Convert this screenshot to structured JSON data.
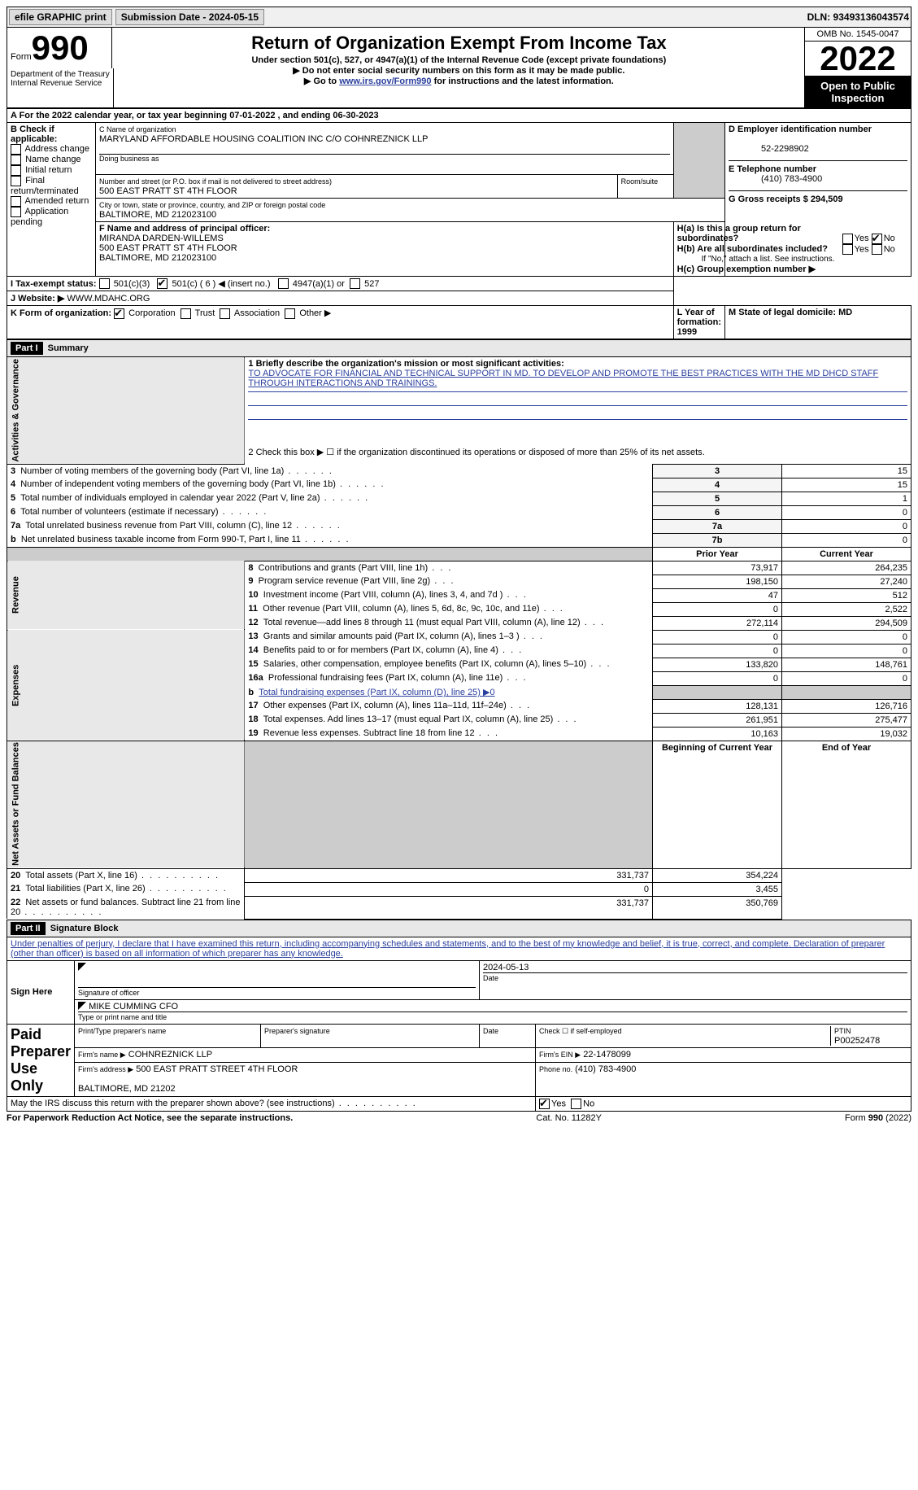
{
  "topbar": {
    "efile": "efile GRAPHIC print",
    "submission": "Submission Date - 2024-05-15",
    "dln": "DLN: 93493136043574"
  },
  "header": {
    "form_word": "Form",
    "form_no": "990",
    "title": "Return of Organization Exempt From Income Tax",
    "sub1": "Under section 501(c), 527, or 4947(a)(1) of the Internal Revenue Code (except private foundations)",
    "sub2": "▶ Do not enter social security numbers on this form as it may be made public.",
    "sub3_pre": "▶ Go to ",
    "sub3_link": "www.irs.gov/Form990",
    "sub3_post": " for instructions and the latest information.",
    "dept": "Department of the Treasury\nInternal Revenue Service",
    "omb": "OMB No. 1545-0047",
    "year": "2022",
    "inspect": "Open to Public Inspection"
  },
  "sectionA": {
    "line": "A For the 2022 calendar year, or tax year beginning 07-01-2022   , and ending 06-30-2023",
    "b_label": "B Check if applicable:",
    "b_opts": [
      "Address change",
      "Name change",
      "Initial return",
      "Final return/terminated",
      "Amended return",
      "Application pending"
    ],
    "c_label": "C Name of organization",
    "c_name": "MARYLAND AFFORDABLE HOUSING COALITION INC C/O COHNREZNICK LLP",
    "dba_label": "Doing business as",
    "addr_label": "Number and street (or P.O. box if mail is not delivered to street address)",
    "addr": "500 EAST PRATT ST 4TH FLOOR",
    "room_label": "Room/suite",
    "city_label": "City or town, state or province, country, and ZIP or foreign postal code",
    "city": "BALTIMORE, MD  212023100",
    "d_label": "D Employer identification number",
    "d_val": "52-2298902",
    "e_label": "E Telephone number",
    "e_val": "(410) 783-4900",
    "g_label": "G Gross receipts $ 294,509",
    "f_label": "F  Name and address of principal officer:",
    "f_val": "MIRANDA DARDEN-WILLEMS\n500 EAST PRATT ST 4TH FLOOR\nBALTIMORE, MD  212023100",
    "ha": "H(a)  Is this a group return for subordinates?",
    "hb": "H(b)  Are all subordinates included?",
    "hb_note": "If \"No,\" attach a list. See instructions.",
    "hc": "H(c)  Group exemption number ▶",
    "yes": "Yes",
    "no": "No",
    "i_label": "I   Tax-exempt status:",
    "i_501c3": "501(c)(3)",
    "i_501c": "501(c) ( 6 ) ◀ (insert no.)",
    "i_4947": "4947(a)(1) or",
    "i_527": "527",
    "j_label": "J   Website: ▶",
    "j_val": "WWW.MDAHC.ORG",
    "k_label": "K Form of organization:",
    "k_corp": "Corporation",
    "k_trust": "Trust",
    "k_assoc": "Association",
    "k_other": "Other ▶",
    "l_label": "L Year of formation: 1999",
    "m_label": "M State of legal domicile: MD"
  },
  "part1": {
    "hdr": "Part I",
    "title": "Summary",
    "q1_label": "1  Briefly describe the organization's mission or most significant activities:",
    "q1_val": "TO ADVOCATE FOR FINANCIAL AND TECHNICAL SUPPORT IN MD. TO DEVELOP AND PROMOTE THE BEST PRACTICES WITH THE MD DHCD STAFF THROUGH INTERACTIONS AND TRAININGS.",
    "q2": "2   Check this box ▶ ☐  if the organization discontinued its operations or disposed of more than 25% of its net assets.",
    "rows_a": [
      {
        "n": "3",
        "label": "Number of voting members of the governing body (Part VI, line 1a)",
        "ref": "3",
        "val": "15"
      },
      {
        "n": "4",
        "label": "Number of independent voting members of the governing body (Part VI, line 1b)",
        "ref": "4",
        "val": "15"
      },
      {
        "n": "5",
        "label": "Total number of individuals employed in calendar year 2022 (Part V, line 2a)",
        "ref": "5",
        "val": "1"
      },
      {
        "n": "6",
        "label": "Total number of volunteers (estimate if necessary)",
        "ref": "6",
        "val": "0"
      },
      {
        "n": "7a",
        "label": "Total unrelated business revenue from Part VIII, column (C), line 12",
        "ref": "7a",
        "val": "0"
      },
      {
        "n": "b",
        "label": "Net unrelated business taxable income from Form 990-T, Part I, line 11",
        "ref": "7b",
        "val": "0"
      }
    ],
    "col_prior": "Prior Year",
    "col_current": "Current Year",
    "revenue": [
      {
        "n": "8",
        "label": "Contributions and grants (Part VIII, line 1h)",
        "p": "73,917",
        "c": "264,235"
      },
      {
        "n": "9",
        "label": "Program service revenue (Part VIII, line 2g)",
        "p": "198,150",
        "c": "27,240"
      },
      {
        "n": "10",
        "label": "Investment income (Part VIII, column (A), lines 3, 4, and 7d )",
        "p": "47",
        "c": "512"
      },
      {
        "n": "11",
        "label": "Other revenue (Part VIII, column (A), lines 5, 6d, 8c, 9c, 10c, and 11e)",
        "p": "0",
        "c": "2,522"
      },
      {
        "n": "12",
        "label": "Total revenue—add lines 8 through 11 (must equal Part VIII, column (A), line 12)",
        "p": "272,114",
        "c": "294,509"
      }
    ],
    "expenses": [
      {
        "n": "13",
        "label": "Grants and similar amounts paid (Part IX, column (A), lines 1–3 )",
        "p": "0",
        "c": "0"
      },
      {
        "n": "14",
        "label": "Benefits paid to or for members (Part IX, column (A), line 4)",
        "p": "0",
        "c": "0"
      },
      {
        "n": "15",
        "label": "Salaries, other compensation, employee benefits (Part IX, column (A), lines 5–10)",
        "p": "133,820",
        "c": "148,761"
      },
      {
        "n": "16a",
        "label": "Professional fundraising fees (Part IX, column (A), line 11e)",
        "p": "0",
        "c": "0"
      },
      {
        "n": "b",
        "label": "Total fundraising expenses (Part IX, column (D), line 25) ▶0",
        "p": "",
        "c": "",
        "shade": true
      },
      {
        "n": "17",
        "label": "Other expenses (Part IX, column (A), lines 11a–11d, 11f–24e)",
        "p": "128,131",
        "c": "126,716"
      },
      {
        "n": "18",
        "label": "Total expenses. Add lines 13–17 (must equal Part IX, column (A), line 25)",
        "p": "261,951",
        "c": "275,477"
      },
      {
        "n": "19",
        "label": "Revenue less expenses. Subtract line 18 from line 12",
        "p": "10,163",
        "c": "19,032"
      }
    ],
    "col_begin": "Beginning of Current Year",
    "col_end": "End of Year",
    "netassets": [
      {
        "n": "20",
        "label": "Total assets (Part X, line 16)",
        "p": "331,737",
        "c": "354,224"
      },
      {
        "n": "21",
        "label": "Total liabilities (Part X, line 26)",
        "p": "0",
        "c": "3,455"
      },
      {
        "n": "22",
        "label": "Net assets or fund balances. Subtract line 21 from line 20",
        "p": "331,737",
        "c": "350,769"
      }
    ],
    "vt_activities": "Activities & Governance",
    "vt_revenue": "Revenue",
    "vt_expenses": "Expenses",
    "vt_net": "Net Assets or Fund Balances"
  },
  "part2": {
    "hdr": "Part II",
    "title": "Signature Block",
    "decl": "Under penalties of perjury, I declare that I have examined this return, including accompanying schedules and statements, and to the best of my knowledge and belief, it is true, correct, and complete. Declaration of preparer (other than officer) is based on all information of which preparer has any knowledge.",
    "sign_here": "Sign Here",
    "sig_officer": "Signature of officer",
    "sig_date": "2024-05-13",
    "date_lbl": "Date",
    "officer_name": "MIKE CUMMING CFO",
    "officer_sub": "Type or print name and title",
    "paid": "Paid Preparer Use Only",
    "prep_name_lbl": "Print/Type preparer's name",
    "prep_sig_lbl": "Preparer's signature",
    "check_self": "Check ☐ if self-employed",
    "ptin_lbl": "PTIN",
    "ptin": "P00252478",
    "firm_name_lbl": "Firm's name    ▶",
    "firm_name": "COHNREZNICK LLP",
    "firm_ein_lbl": "Firm's EIN ▶",
    "firm_ein": "22-1478099",
    "firm_addr_lbl": "Firm's address ▶",
    "firm_addr": "500 EAST PRATT STREET 4TH FLOOR\n\nBALTIMORE, MD  21202",
    "phone_lbl": "Phone no.",
    "phone": "(410) 783-4900",
    "discuss": "May the IRS discuss this return with the preparer shown above? (see instructions)"
  },
  "footer": {
    "left": "For Paperwork Reduction Act Notice, see the separate instructions.",
    "mid": "Cat. No. 11282Y",
    "right": "Form 990 (2022)"
  }
}
